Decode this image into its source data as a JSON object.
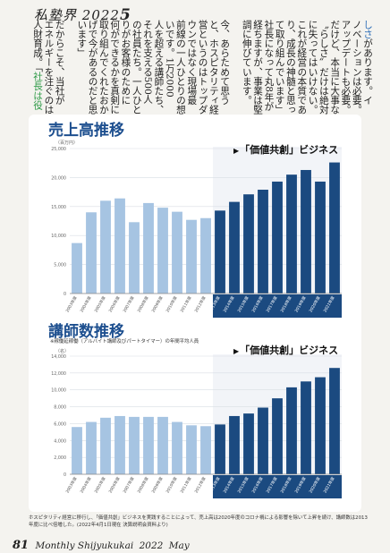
{
  "header": {
    "title": "私塾界",
    "year": "2022",
    "issue": "5"
  },
  "text_columns": [
    {
      "segments": [
        {
          "t": "しさ",
          "c": "blue"
        },
        {
          "t": "があります。イ",
          "c": ""
        }
      ]
    },
    {
      "segments": [
        {
          "t": "ノベーションは必要。",
          "c": ""
        }
      ]
    },
    {
      "segments": [
        {
          "t": "アップデートも必要。",
          "c": ""
        }
      ]
    },
    {
      "segments": [
        {
          "t": "だけど、本当に大事な",
          "c": ""
        }
      ]
    },
    {
      "segments": [
        {
          "t": "〝らしさ〟だけは絶対",
          "c": ""
        }
      ]
    },
    {
      "segments": [
        {
          "t": "に失ってはいけない。",
          "c": ""
        }
      ]
    },
    {
      "segments": [
        {
          "t": "これが経営の本質であ",
          "c": ""
        }
      ]
    },
    {
      "segments": [
        {
          "t": "り、成長の神髄と思っ",
          "c": ""
        }
      ]
    },
    {
      "segments": [
        {
          "t": "て取り組んでいます」",
          "c": ""
        }
      ]
    },
    {
      "segments": [
        {
          "t": "社長になって丸8年が",
          "c": ""
        }
      ]
    },
    {
      "segments": [
        {
          "t": "経ちますが、事業は堅",
          "c": ""
        }
      ]
    },
    {
      "segments": [
        {
          "t": "調に伸びています。",
          "c": ""
        }
      ]
    },
    {
      "segments": [
        {
          "t": "",
          "c": ""
        }
      ]
    },
    {
      "segments": [
        {
          "t": "今、あらためて思う",
          "c": ""
        }
      ]
    },
    {
      "segments": [
        {
          "t": "と、ホスピタリティ経",
          "c": ""
        }
      ]
    },
    {
      "segments": [
        {
          "t": "営というのはトップダ",
          "c": ""
        }
      ]
    },
    {
      "segments": [
        {
          "t": "ウンではなく現場最",
          "c": ""
        }
      ]
    },
    {
      "segments": [
        {
          "t": "前線の一人ひとりの想",
          "c": ""
        }
      ]
    },
    {
      "segments": [
        {
          "t": "いです。1万2000",
          "c": ""
        }
      ]
    },
    {
      "segments": [
        {
          "t": "人を超える講師たち、",
          "c": ""
        }
      ]
    },
    {
      "segments": [
        {
          "t": "それを支える500人",
          "c": ""
        }
      ]
    },
    {
      "segments": [
        {
          "t": "の社員たち。一人ひと",
          "c": ""
        }
      ]
    },
    {
      "segments": [
        {
          "t": "りがお客様のために",
          "c": ""
        }
      ]
    },
    {
      "segments": [
        {
          "t": "何ができるかを真剣に",
          "c": ""
        }
      ]
    },
    {
      "segments": [
        {
          "t": "取り組んでくれたおか",
          "c": ""
        }
      ]
    },
    {
      "segments": [
        {
          "t": "げで今があるのだと思",
          "c": ""
        }
      ]
    },
    {
      "segments": [
        {
          "t": "います」",
          "c": ""
        }
      ]
    },
    {
      "segments": [
        {
          "t": "",
          "c": ""
        }
      ]
    },
    {
      "segments": [
        {
          "t": "だからこそ、当社が",
          "c": ""
        }
      ]
    },
    {
      "segments": [
        {
          "t": "エネルギーを注ぐのは",
          "c": ""
        }
      ]
    },
    {
      "segments": [
        {
          "t": "人財育成。「",
          "c": ""
        },
        {
          "t": "社長は役",
          "c": "green"
        }
      ]
    }
  ],
  "chart_data": [
    {
      "type": "bar",
      "title": "売上高推移",
      "unit_label": "（百万円）",
      "badge": "「価値共創」ビジネス",
      "ylim": [
        0,
        25000
      ],
      "yticks": [
        0,
        5000,
        10000,
        15000,
        20000,
        25000
      ],
      "ytick_labels": [
        "0",
        "5,000",
        "10,000",
        "15,000",
        "20,000",
        "25,000"
      ],
      "categories": [
        "2003年度",
        "2004年度",
        "2005年度",
        "2006年度",
        "2007年度",
        "2008年度",
        "2009年度",
        "2010年度",
        "2011年度",
        "2012年度",
        "2013年度",
        "2014年度",
        "2015年度",
        "2016年度",
        "2017年度",
        "2018年度",
        "2019年度",
        "2020年度",
        "2021年度"
      ],
      "values": [
        8700,
        14000,
        16000,
        16400,
        12300,
        15600,
        14800,
        14100,
        12700,
        13000,
        14300,
        15800,
        17100,
        17900,
        19300,
        20500,
        21300,
        19300,
        22600
      ],
      "highlight_from": "2013年度",
      "colors": {
        "before": "#a6c4e2",
        "after": "#1b4a80"
      },
      "grid": true
    },
    {
      "type": "bar",
      "title": "講師数推移",
      "note": "※稼働延稼働（アルバイト講師及びパートタイマー）の年間平均人員",
      "unit_label": "（名）",
      "badge": "「価値共創」ビジネス",
      "ylim": [
        0,
        14000
      ],
      "yticks": [
        0,
        2000,
        4000,
        6000,
        8000,
        10000,
        12000,
        14000
      ],
      "ytick_labels": [
        "0",
        "2,000",
        "4,000",
        "6,000",
        "8,000",
        "10,000",
        "12,000",
        "14,000"
      ],
      "categories": [
        "2003年度",
        "2004年度",
        "2005年度",
        "2006年度",
        "2007年度",
        "2008年度",
        "2009年度",
        "2010年度",
        "2011年度",
        "2012年度",
        "2013年度",
        "2014年度",
        "2015年度",
        "2016年度",
        "2017年度",
        "2018年度",
        "2019年度",
        "2020年度",
        "2021年度"
      ],
      "values": [
        5600,
        6200,
        6700,
        6900,
        6800,
        6800,
        6800,
        6200,
        5800,
        5700,
        5900,
        6900,
        7200,
        7900,
        9000,
        10300,
        11000,
        11500,
        12600
      ],
      "highlight_from": "2013年度",
      "colors": {
        "before": "#a6c4e2",
        "after": "#1b4a80"
      },
      "grid": true
    }
  ],
  "caption": "ホスピタリティ経営に移行し、「価値共創」ビジネスを実践することによって、売上高は2020年度のコロナ禍による影響を除いて上昇を続け、講師数は2013年度に比べ倍増した。(2022年4月1日現在 決算説明会資料より)",
  "footer": {
    "page": "81",
    "publication": "Monthly Shijyukukai",
    "year": "2022",
    "month": "May"
  }
}
